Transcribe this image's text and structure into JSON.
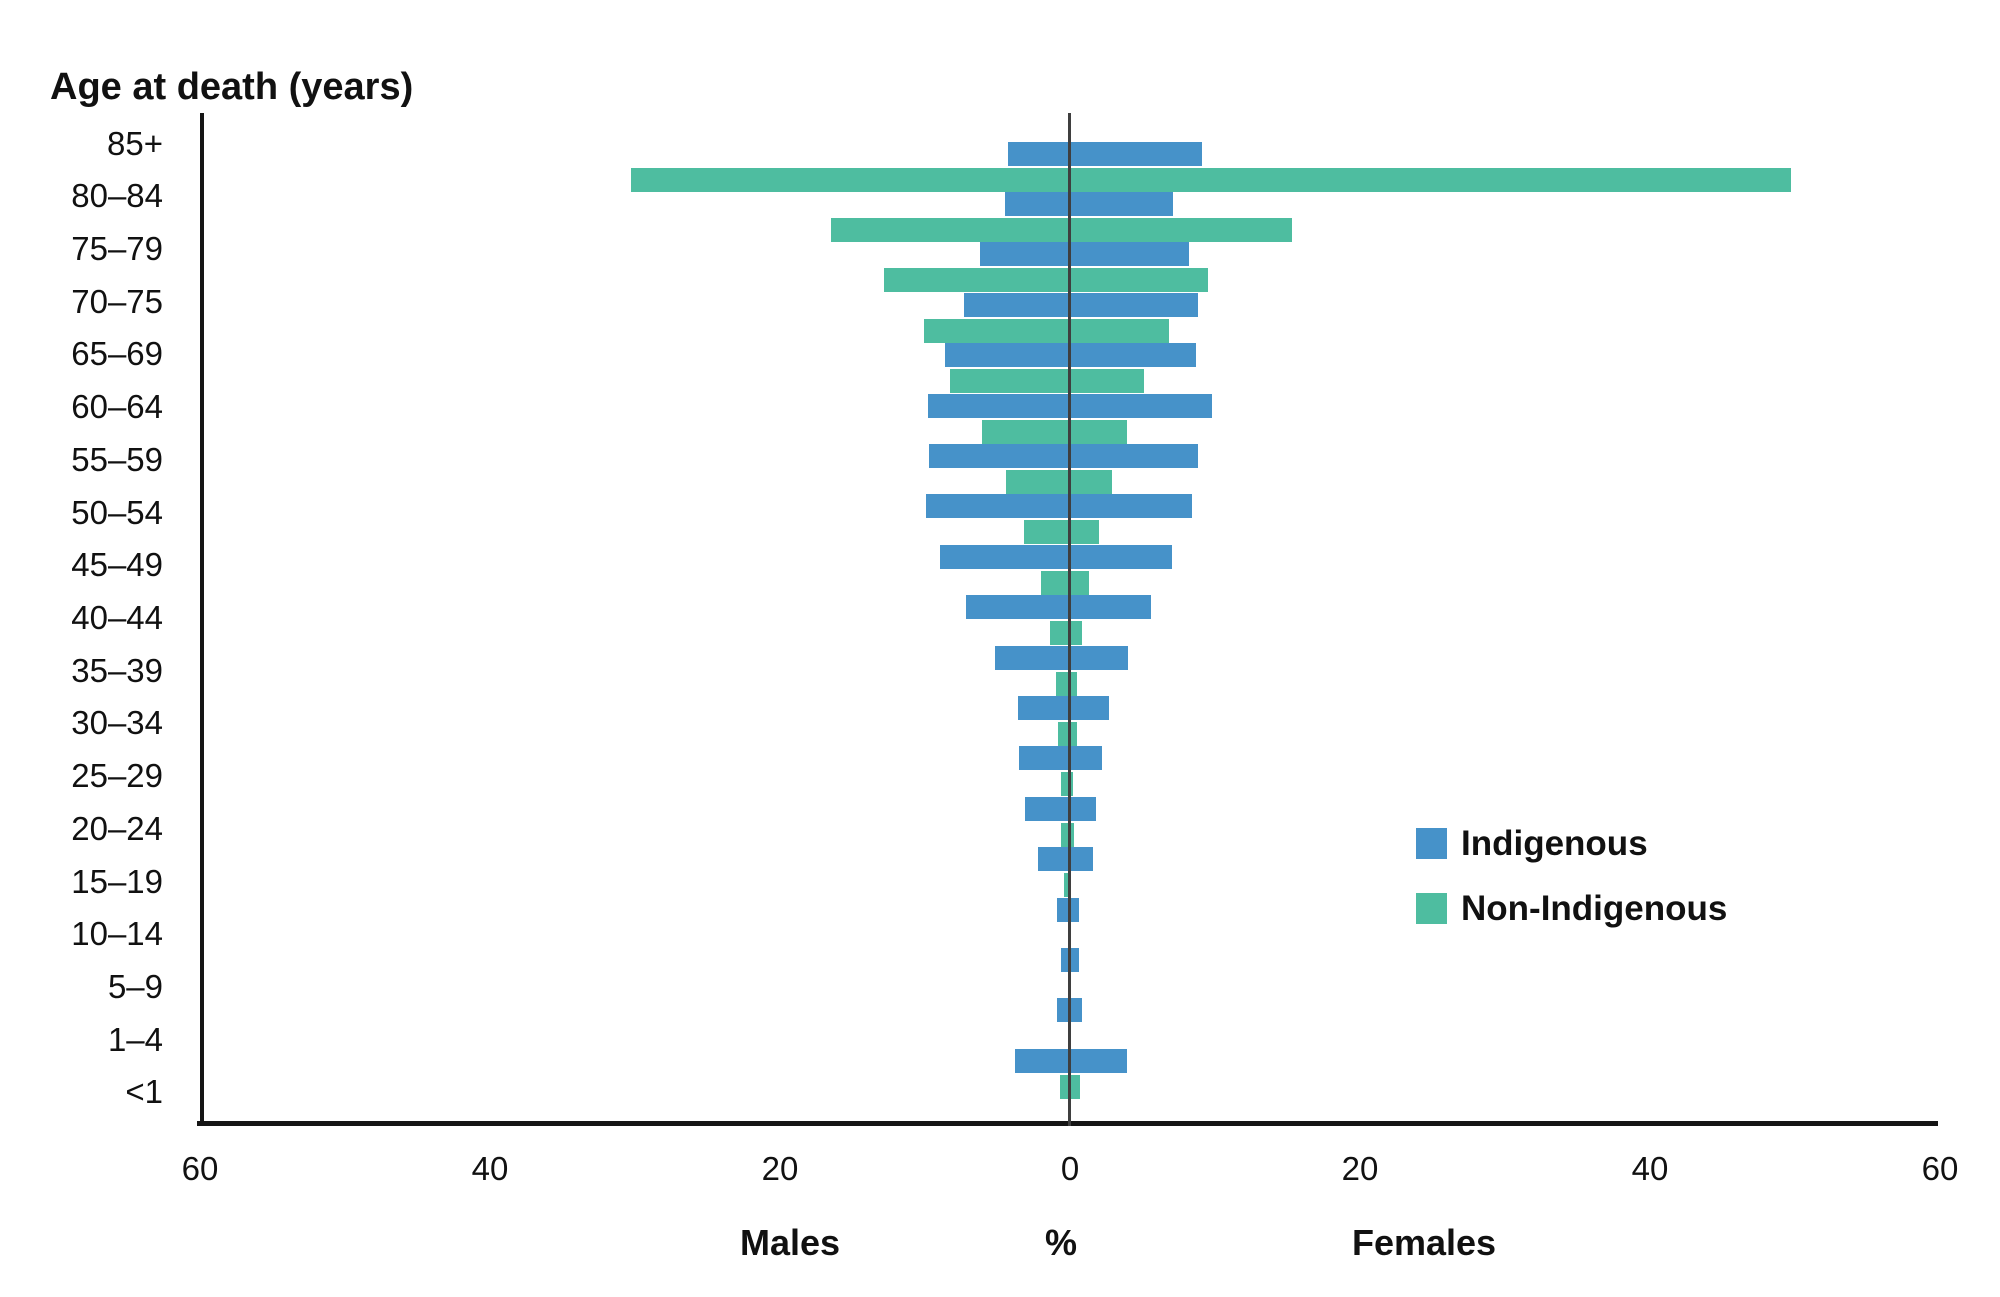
{
  "title": "Age at death (years)",
  "x_axis": {
    "tick_labels": [
      "60",
      "40",
      "20",
      "0",
      "20",
      "40",
      "60"
    ],
    "left_label": "Males",
    "unit_label": "%",
    "right_label": "Females"
  },
  "legend": {
    "items": [
      {
        "label": "Indigenous",
        "color": "#4692c9"
      },
      {
        "label": "Non-Indigenous",
        "color": "#4ebda0"
      }
    ]
  },
  "chart_data": {
    "type": "bar",
    "subtype": "population-pyramid",
    "title": "Age at death (years)",
    "unit": "%",
    "left_side_label": "Males",
    "right_side_label": "Females",
    "axis_ticks_each_side": [
      0,
      20,
      40,
      60
    ],
    "xlim_each_side": [
      0,
      60
    ],
    "grid": false,
    "legend_position": "right-middle",
    "categories": [
      "85+",
      "80–84",
      "75–79",
      "70–75",
      "65–69",
      "60–64",
      "55–59",
      "50–54",
      "45–49",
      "40–44",
      "35–39",
      "30–34",
      "25–29",
      "20–24",
      "15–19",
      "10–14",
      "5–9",
      "1–4",
      "<1"
    ],
    "series": [
      {
        "name": "Indigenous",
        "color": "#4692c9",
        "males": [
          4.3,
          4.5,
          6.2,
          7.3,
          8.6,
          9.8,
          9.7,
          9.9,
          9.0,
          7.2,
          5.2,
          3.6,
          3.5,
          3.1,
          2.2,
          0.9,
          0.6,
          0.9,
          3.8
        ],
        "females": [
          9.1,
          7.1,
          8.2,
          8.8,
          8.7,
          9.8,
          8.8,
          8.4,
          7.0,
          5.6,
          4.0,
          2.7,
          2.2,
          1.8,
          1.6,
          0.6,
          0.6,
          0.8,
          3.9
        ]
      },
      {
        "name": "Non-Indigenous",
        "color": "#4ebda0",
        "males": [
          30.3,
          16.5,
          12.8,
          10.1,
          8.3,
          6.1,
          4.4,
          3.2,
          2.0,
          1.4,
          1.0,
          0.8,
          0.6,
          0.6,
          0.4,
          0.1,
          0.1,
          0.1,
          0.7
        ],
        "females": [
          49.7,
          15.3,
          9.5,
          6.8,
          5.1,
          3.9,
          2.9,
          2.0,
          1.3,
          0.8,
          0.5,
          0.5,
          0.2,
          0.3,
          0.1,
          0.1,
          0.1,
          0.1,
          0.7
        ]
      }
    ]
  }
}
